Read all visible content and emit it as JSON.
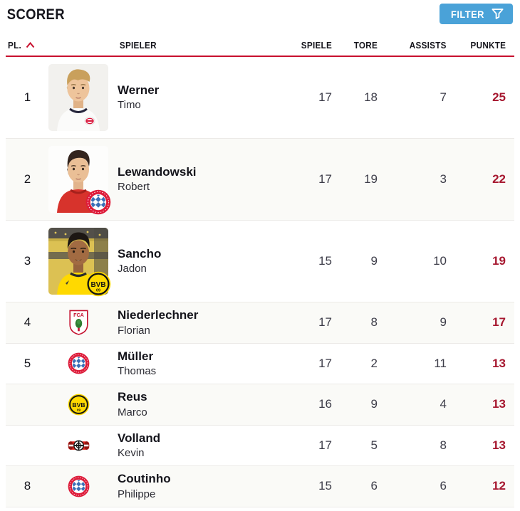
{
  "header": {
    "title": "SCORER",
    "filter_label": "FILTER"
  },
  "table": {
    "columns": {
      "place": "PL.",
      "player": "SPIELER",
      "games": "SPIELE",
      "goals": "TORE",
      "assists": "ASSISTS",
      "points": "PUNKTE"
    },
    "sort": {
      "column": "place",
      "direction": "asc"
    },
    "rows": [
      {
        "place": "1",
        "last": "Werner",
        "first": "Timo",
        "games": "17",
        "goals": "18",
        "assists": "7",
        "points": "25",
        "club": "rb-leipzig",
        "photo": "werner-portrait"
      },
      {
        "place": "2",
        "last": "Lewandowski",
        "first": "Robert",
        "games": "17",
        "goals": "19",
        "assists": "3",
        "points": "22",
        "club": "fc-bayern",
        "photo": "lewandowski-portrait"
      },
      {
        "place": "3",
        "last": "Sancho",
        "first": "Jadon",
        "games": "15",
        "goals": "9",
        "assists": "10",
        "points": "19",
        "club": "borussia-dortmund",
        "photo": "sancho-portrait"
      },
      {
        "place": "4",
        "last": "Niederlechner",
        "first": "Florian",
        "games": "17",
        "goals": "8",
        "assists": "9",
        "points": "17",
        "club": "fc-augsburg",
        "photo": null
      },
      {
        "place": "5",
        "last": "Müller",
        "first": "Thomas",
        "games": "17",
        "goals": "2",
        "assists": "11",
        "points": "13",
        "club": "fc-bayern",
        "photo": null
      },
      {
        "place": "",
        "last": "Reus",
        "first": "Marco",
        "games": "16",
        "goals": "9",
        "assists": "4",
        "points": "13",
        "club": "borussia-dortmund",
        "photo": null
      },
      {
        "place": "",
        "last": "Volland",
        "first": "Kevin",
        "games": "17",
        "goals": "5",
        "assists": "8",
        "points": "13",
        "club": "bayer-leverkusen",
        "photo": null
      },
      {
        "place": "8",
        "last": "Coutinho",
        "first": "Philippe",
        "games": "15",
        "goals": "6",
        "assists": "6",
        "points": "12",
        "club": "fc-bayern",
        "photo": null
      }
    ]
  },
  "colors": {
    "accent_red": "#c8102e",
    "points_red": "#a6172f",
    "filter_blue": "#4aa2d8",
    "text_dark": "#15151c",
    "number_gray": "#3d3d49"
  }
}
